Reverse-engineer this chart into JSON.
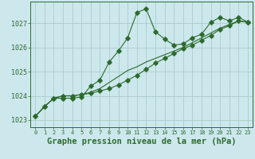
{
  "title": "Graphe pression niveau de la mer (hPa)",
  "background_color": "#cce8ec",
  "grid_color": "#aacccc",
  "line_color": "#2d6a2d",
  "xlim": [
    -0.5,
    23.5
  ],
  "ylim": [
    1022.7,
    1027.9
  ],
  "yticks": [
    1023,
    1024,
    1025,
    1026,
    1027
  ],
  "xticks": [
    0,
    1,
    2,
    3,
    4,
    5,
    6,
    7,
    8,
    9,
    10,
    11,
    12,
    13,
    14,
    15,
    16,
    17,
    18,
    19,
    20,
    21,
    22,
    23
  ],
  "series1_x": [
    0,
    1,
    2,
    3,
    4,
    5,
    6,
    7,
    8,
    9,
    10,
    11,
    12,
    13,
    14,
    15,
    16,
    17,
    18,
    19,
    20,
    21,
    22,
    23
  ],
  "series1_y": [
    1023.15,
    1023.55,
    1023.9,
    1023.9,
    1023.9,
    1023.95,
    1024.4,
    1024.65,
    1025.4,
    1025.85,
    1026.4,
    1027.45,
    1027.6,
    1026.65,
    1026.35,
    1026.1,
    1026.15,
    1026.4,
    1026.55,
    1027.05,
    1027.25,
    1027.1,
    1027.25,
    1027.05
  ],
  "series2_x": [
    0,
    1,
    2,
    3,
    4,
    5,
    6,
    7,
    8,
    9,
    10,
    11,
    12,
    13,
    14,
    15,
    16,
    17,
    18,
    19,
    20,
    21,
    22,
    23
  ],
  "series2_y": [
    1023.15,
    1023.55,
    1023.9,
    1024.0,
    1024.0,
    1024.05,
    1024.1,
    1024.2,
    1024.3,
    1024.45,
    1024.65,
    1024.85,
    1025.1,
    1025.35,
    1025.55,
    1025.75,
    1025.95,
    1026.1,
    1026.3,
    1026.5,
    1026.75,
    1026.9,
    1027.1,
    1027.05
  ],
  "series3_x": [
    0,
    1,
    2,
    3,
    4,
    5,
    6,
    7,
    8,
    9,
    10,
    11,
    12,
    13,
    14,
    15,
    16,
    17,
    18,
    19,
    20,
    21,
    22,
    23
  ],
  "series3_y": [
    1023.15,
    1023.55,
    1023.9,
    1024.0,
    1024.0,
    1024.05,
    1024.15,
    1024.3,
    1024.55,
    1024.8,
    1025.05,
    1025.2,
    1025.4,
    1025.55,
    1025.7,
    1025.85,
    1026.0,
    1026.2,
    1026.4,
    1026.6,
    1026.8,
    1026.95,
    1027.1,
    1027.05
  ],
  "title_fontsize": 7.5,
  "tick_fontsize": 6
}
